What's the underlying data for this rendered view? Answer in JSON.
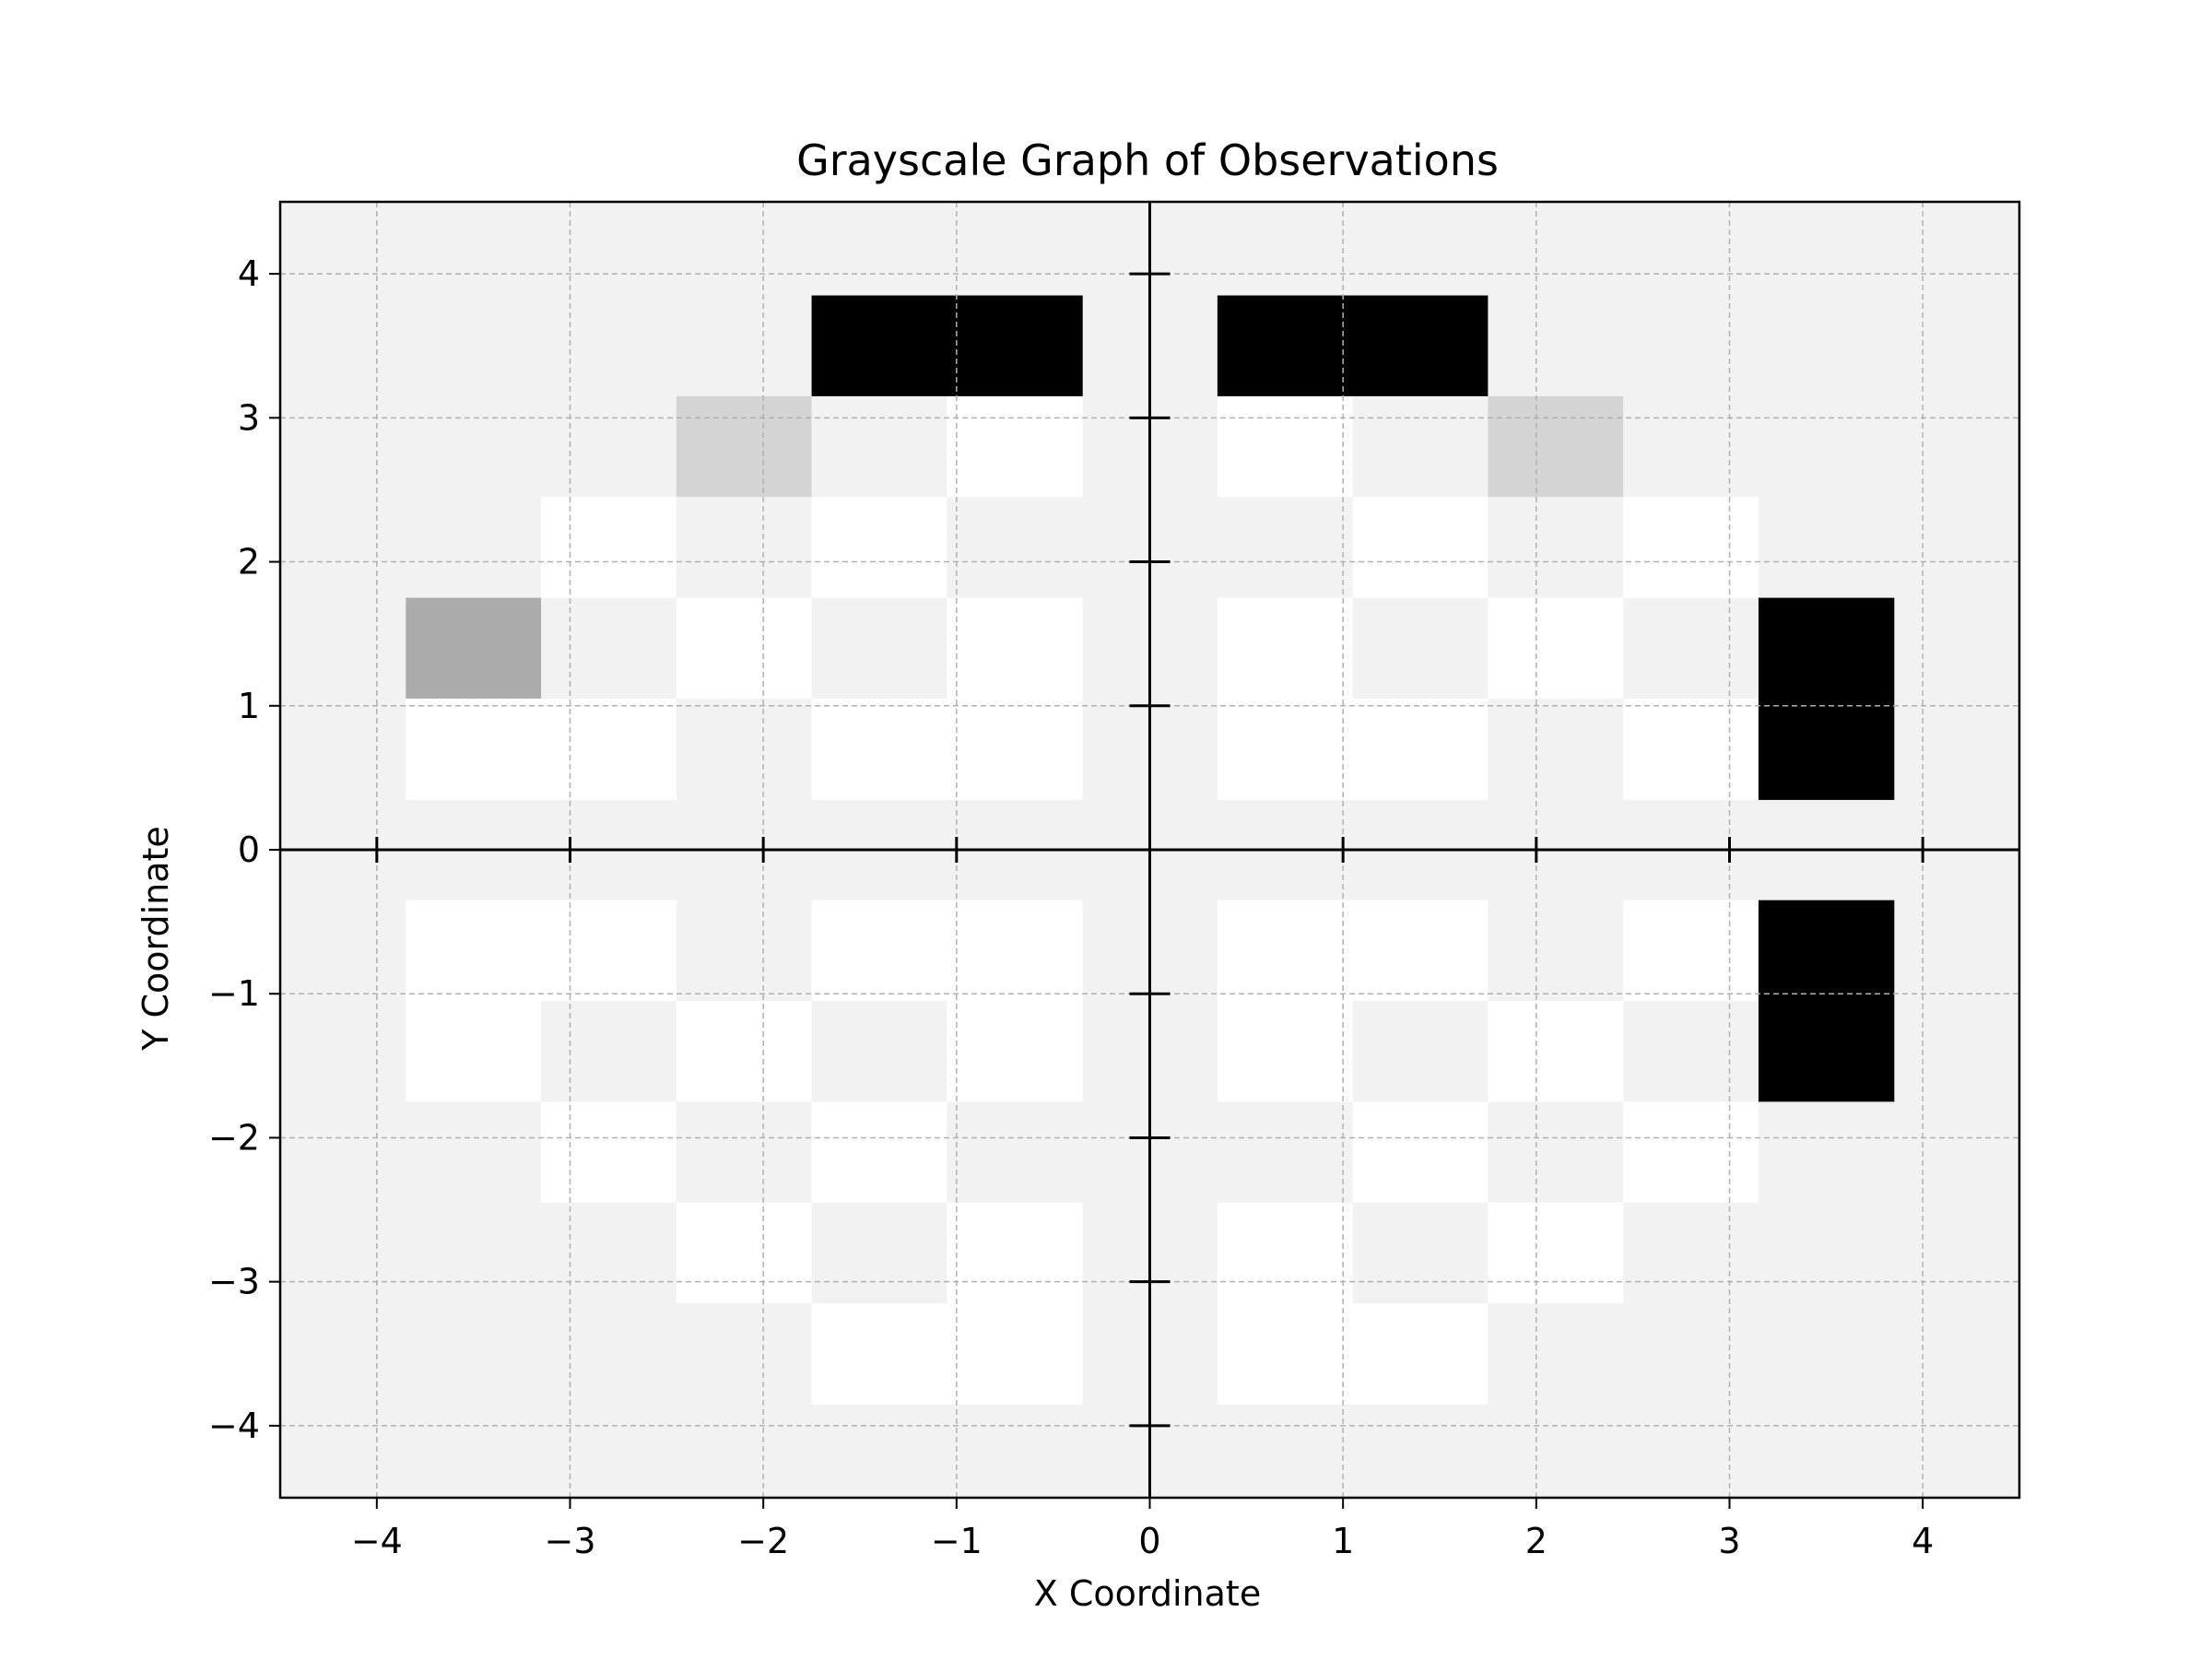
{
  "chart_data": {
    "type": "heatmap",
    "title": "Grayscale Graph of Observations",
    "xlabel": "X Coordinate",
    "ylabel": "Y Coordinate",
    "xlim": [
      -4.5,
      4.5
    ],
    "ylim": [
      -4.5,
      4.5
    ],
    "x_ticks": [
      -4,
      -3,
      -2,
      -1,
      0,
      1,
      2,
      3,
      4
    ],
    "y_ticks": [
      -4,
      -3,
      -2,
      -1,
      0,
      1,
      2,
      3,
      4
    ],
    "x_tick_labels": [
      "−4",
      "−3",
      "−2",
      "−1",
      "0",
      "1",
      "2",
      "3",
      "4"
    ],
    "y_tick_labels": [
      "−4",
      "−3",
      "−2",
      "−1",
      "0",
      "1",
      "2",
      "3",
      "4"
    ],
    "grid": true,
    "axes_lines_through_origin": true,
    "background_color": "#f2f2f2",
    "cell_width": 0.7,
    "cell_height": 0.7,
    "x_centers": [
      -3.5,
      -2.8,
      -2.1,
      -1.4,
      -0.7,
      0.7,
      1.4,
      2.1,
      2.8,
      3.5
    ],
    "y_centers": [
      3.5,
      2.8,
      2.1,
      1.4,
      0.7,
      -0.7,
      -1.4,
      -2.1,
      -2.8,
      -3.5
    ],
    "values": [
      [
        0.95,
        0.95,
        0.95,
        0.0,
        0.0,
        0.0,
        0.0,
        0.95,
        0.95,
        0.95
      ],
      [
        0.95,
        0.95,
        0.83,
        0.95,
        1.0,
        1.0,
        0.95,
        0.83,
        0.95,
        0.95
      ],
      [
        0.95,
        1.0,
        0.95,
        1.0,
        0.95,
        0.95,
        1.0,
        0.95,
        1.0,
        0.95
      ],
      [
        0.67,
        0.95,
        1.0,
        0.95,
        1.0,
        1.0,
        0.95,
        1.0,
        0.95,
        0.0
      ],
      [
        1.0,
        1.0,
        0.95,
        1.0,
        1.0,
        1.0,
        1.0,
        0.95,
        1.0,
        0.0
      ],
      [
        1.0,
        1.0,
        0.95,
        1.0,
        1.0,
        1.0,
        1.0,
        0.95,
        1.0,
        0.0
      ],
      [
        1.0,
        0.95,
        1.0,
        0.95,
        1.0,
        1.0,
        0.95,
        1.0,
        0.95,
        0.0
      ],
      [
        0.95,
        1.0,
        0.95,
        1.0,
        0.95,
        0.95,
        1.0,
        0.95,
        1.0,
        0.95
      ],
      [
        0.95,
        0.95,
        1.0,
        0.95,
        1.0,
        1.0,
        0.95,
        1.0,
        0.95,
        0.95
      ],
      [
        0.95,
        0.95,
        0.95,
        1.0,
        1.0,
        1.0,
        1.0,
        0.95,
        0.95,
        0.95
      ]
    ],
    "colormap": "gray"
  }
}
